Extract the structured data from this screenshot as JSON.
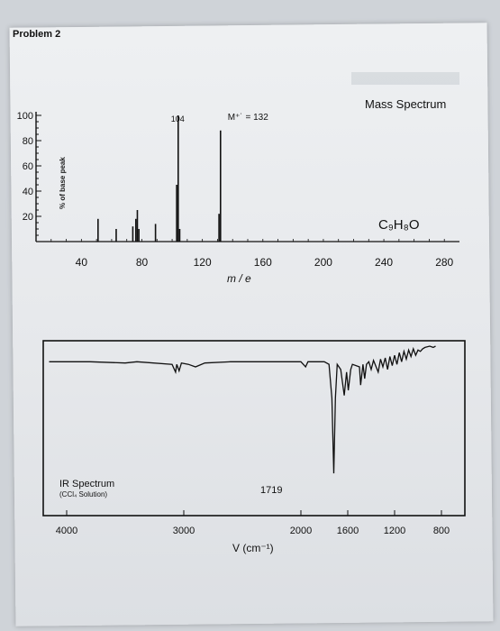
{
  "page": {
    "problem_title": "Problem 2"
  },
  "chart_data": [
    {
      "type": "bar",
      "title": "Mass Spectrum",
      "ylabel": "% of base peak",
      "xlabel": "m / e",
      "formula": "C₉H₈O",
      "annotations": [
        {
          "label": "104",
          "x": 104
        },
        {
          "label": "M⁺˙ = 132",
          "x": 132
        }
      ],
      "xlim": [
        10,
        290
      ],
      "ylim": [
        0,
        100
      ],
      "xticks": [
        40,
        80,
        120,
        160,
        200,
        240,
        280
      ],
      "yticks": [
        20,
        40,
        60,
        80,
        100
      ],
      "peaks": [
        {
          "x": 51,
          "y": 18
        },
        {
          "x": 63,
          "y": 10
        },
        {
          "x": 74,
          "y": 12
        },
        {
          "x": 76,
          "y": 18
        },
        {
          "x": 77,
          "y": 25
        },
        {
          "x": 78,
          "y": 10
        },
        {
          "x": 89,
          "y": 14
        },
        {
          "x": 103,
          "y": 45
        },
        {
          "x": 104,
          "y": 100
        },
        {
          "x": 105,
          "y": 10
        },
        {
          "x": 131,
          "y": 22
        },
        {
          "x": 132,
          "y": 88
        }
      ]
    },
    {
      "type": "line",
      "title": "IR Spectrum",
      "subtitle": "(CCl₄ Solution)",
      "xlabel": "V (cm⁻¹)",
      "annotation": "1719",
      "xlim": [
        4200,
        600
      ],
      "ylim": [
        0,
        100
      ],
      "xticks": [
        4000,
        3000,
        2000,
        1600,
        1200,
        800
      ],
      "points": [
        [
          4150,
          88
        ],
        [
          3800,
          88
        ],
        [
          3500,
          87
        ],
        [
          3400,
          88
        ],
        [
          3100,
          86
        ],
        [
          3070,
          80
        ],
        [
          3060,
          86
        ],
        [
          3040,
          81
        ],
        [
          3020,
          87
        ],
        [
          2960,
          86
        ],
        [
          2900,
          84
        ],
        [
          2820,
          87
        ],
        [
          2600,
          88
        ],
        [
          2300,
          88
        ],
        [
          2000,
          88
        ],
        [
          1960,
          84
        ],
        [
          1940,
          88
        ],
        [
          1800,
          88
        ],
        [
          1760,
          86
        ],
        [
          1735,
          60
        ],
        [
          1719,
          2
        ],
        [
          1705,
          60
        ],
        [
          1690,
          86
        ],
        [
          1660,
          82
        ],
        [
          1630,
          62
        ],
        [
          1610,
          80
        ],
        [
          1595,
          66
        ],
        [
          1575,
          82
        ],
        [
          1560,
          86
        ],
        [
          1500,
          84
        ],
        [
          1490,
          70
        ],
        [
          1470,
          86
        ],
        [
          1455,
          75
        ],
        [
          1440,
          86
        ],
        [
          1420,
          88
        ],
        [
          1400,
          82
        ],
        [
          1380,
          89
        ],
        [
          1340,
          80
        ],
        [
          1320,
          90
        ],
        [
          1300,
          84
        ],
        [
          1280,
          91
        ],
        [
          1260,
          82
        ],
        [
          1240,
          92
        ],
        [
          1220,
          85
        ],
        [
          1200,
          93
        ],
        [
          1180,
          86
        ],
        [
          1160,
          95
        ],
        [
          1140,
          88
        ],
        [
          1120,
          96
        ],
        [
          1100,
          90
        ],
        [
          1080,
          97
        ],
        [
          1060,
          92
        ],
        [
          1040,
          98
        ],
        [
          1020,
          93
        ],
        [
          1000,
          97
        ],
        [
          980,
          96
        ],
        [
          960,
          98
        ],
        [
          940,
          99
        ],
        [
          900,
          100
        ],
        [
          870,
          99
        ],
        [
          850,
          100
        ]
      ]
    }
  ]
}
